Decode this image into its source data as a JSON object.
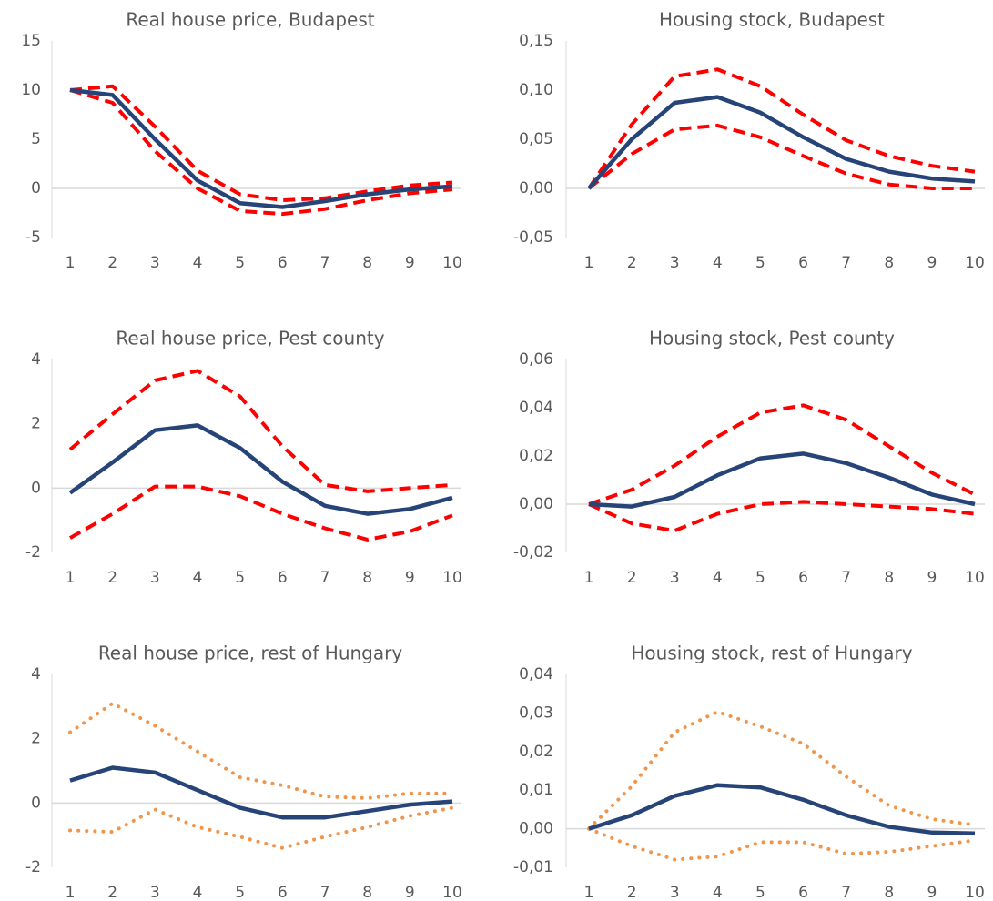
{
  "chart_data": [
    {
      "type": "line",
      "title": "Real house price, Budapest",
      "categories": [
        "1",
        "2",
        "3",
        "4",
        "5",
        "6",
        "7",
        "8",
        "9",
        "10"
      ],
      "ylim": [
        -5,
        15
      ],
      "yticks": [
        -5,
        0,
        5,
        10,
        15
      ],
      "series": [
        {
          "color": "#ff0000",
          "style": "dashed",
          "values": [
            10,
            10.4,
            6.3,
            1.8,
            -0.6,
            -1.2,
            -1.0,
            -0.3,
            0.3,
            0.6
          ]
        },
        {
          "color": "#ff0000",
          "style": "dashed",
          "values": [
            10,
            8.7,
            3.8,
            0,
            -2.3,
            -2.6,
            -2.1,
            -1.2,
            -0.5,
            -0.1
          ]
        },
        {
          "color": "#264478",
          "style": "solid",
          "values": [
            10,
            9.5,
            5,
            0.8,
            -1.5,
            -1.9,
            -1.3,
            -0.6,
            -0.1,
            0.2
          ]
        }
      ]
    },
    {
      "type": "line",
      "title": "Housing stock, Budapest",
      "categories": [
        "1",
        "2",
        "3",
        "4",
        "5",
        "6",
        "7",
        "8",
        "9",
        "10"
      ],
      "ylim": [
        -0.05,
        0.15
      ],
      "yticks": [
        {
          "value": -0.05,
          "label": "-0,05"
        },
        {
          "value": 0,
          "label": "0,00"
        },
        {
          "value": 0.05,
          "label": "0,05"
        },
        {
          "value": 0.1,
          "label": "0,10"
        },
        {
          "value": 0.15,
          "label": "0,15"
        }
      ],
      "series": [
        {
          "color": "#ff0000",
          "style": "dashed",
          "values": [
            0,
            0.065,
            0.114,
            0.121,
            0.104,
            0.075,
            0.049,
            0.033,
            0.023,
            0.017
          ]
        },
        {
          "color": "#ff0000",
          "style": "dashed",
          "values": [
            0,
            0.035,
            0.06,
            0.064,
            0.052,
            0.033,
            0.015,
            0.004,
            0.0,
            0.0
          ]
        },
        {
          "color": "#264478",
          "style": "solid",
          "values": [
            0,
            0.05,
            0.087,
            0.093,
            0.077,
            0.052,
            0.03,
            0.017,
            0.01,
            0.007
          ]
        }
      ]
    },
    {
      "type": "line",
      "title": "Real house price, Pest county",
      "categories": [
        "1",
        "2",
        "3",
        "4",
        "5",
        "6",
        "7",
        "8",
        "9",
        "10"
      ],
      "ylim": [
        -2,
        4
      ],
      "yticks": [
        -2,
        0,
        2,
        4
      ],
      "series": [
        {
          "color": "#ff0000",
          "style": "dashed",
          "values": [
            1.2,
            2.3,
            3.35,
            3.65,
            2.85,
            1.3,
            0.1,
            -0.1,
            0,
            0.1
          ]
        },
        {
          "color": "#ff0000",
          "style": "dashed",
          "values": [
            -1.55,
            -0.8,
            0.05,
            0.05,
            -0.25,
            -0.8,
            -1.25,
            -1.6,
            -1.35,
            -0.85
          ]
        },
        {
          "color": "#264478",
          "style": "solid",
          "values": [
            -0.15,
            0.8,
            1.8,
            1.95,
            1.25,
            0.2,
            -0.55,
            -0.8,
            -0.65,
            -0.3
          ]
        }
      ]
    },
    {
      "type": "line",
      "title": "Housing stock, Pest county",
      "categories": [
        "1",
        "2",
        "3",
        "4",
        "5",
        "6",
        "7",
        "8",
        "9",
        "10"
      ],
      "ylim": [
        -0.02,
        0.06
      ],
      "yticks": [
        {
          "value": -0.02,
          "label": "-0,02"
        },
        {
          "value": 0,
          "label": "0,00"
        },
        {
          "value": 0.02,
          "label": "0,02"
        },
        {
          "value": 0.04,
          "label": "0,04"
        },
        {
          "value": 0.06,
          "label": "0,06"
        }
      ],
      "series": [
        {
          "color": "#ff0000",
          "style": "dashed",
          "values": [
            0,
            0.006,
            0.016,
            0.028,
            0.038,
            0.041,
            0.035,
            0.024,
            0.013,
            0.004
          ]
        },
        {
          "color": "#ff0000",
          "style": "dashed",
          "values": [
            0,
            -0.008,
            -0.011,
            -0.004,
            0,
            0.001,
            0,
            -0.001,
            -0.002,
            -0.004
          ]
        },
        {
          "color": "#264478",
          "style": "solid",
          "values": [
            0,
            -0.001,
            0.003,
            0.012,
            0.019,
            0.021,
            0.017,
            0.011,
            0.004,
            0
          ]
        }
      ]
    },
    {
      "type": "line",
      "title": "Real house price, rest of Hungary",
      "categories": [
        "1",
        "2",
        "3",
        "4",
        "5",
        "6",
        "7",
        "8",
        "9",
        "10"
      ],
      "ylim": [
        -2,
        4
      ],
      "yticks": [
        -2,
        0,
        2,
        4
      ],
      "series": [
        {
          "color": "#f0954a",
          "style": "dotted",
          "values": [
            2.2,
            3.1,
            2.4,
            1.6,
            0.8,
            0.55,
            0.2,
            0.15,
            0.3,
            0.3
          ]
        },
        {
          "color": "#f0954a",
          "style": "dotted",
          "values": [
            -0.85,
            -0.9,
            -0.2,
            -0.75,
            -1.05,
            -1.4,
            -1.05,
            -0.75,
            -0.4,
            -0.15
          ]
        },
        {
          "color": "#264478",
          "style": "solid",
          "values": [
            0.7,
            1.1,
            0.95,
            0.4,
            -0.15,
            -0.45,
            -0.45,
            -0.25,
            -0.05,
            0.05
          ]
        }
      ]
    },
    {
      "type": "line",
      "title": "Housing stock, rest of Hungary",
      "categories": [
        "1",
        "2",
        "3",
        "4",
        "5",
        "6",
        "7",
        "8",
        "9",
        "10"
      ],
      "ylim": [
        -0.01,
        0.04
      ],
      "yticks": [
        {
          "value": -0.01,
          "label": "-0,01"
        },
        {
          "value": 0,
          "label": "0,00"
        },
        {
          "value": 0.01,
          "label": "0,01"
        },
        {
          "value": 0.02,
          "label": "0,02"
        },
        {
          "value": 0.03,
          "label": "0,03"
        },
        {
          "value": 0.04,
          "label": "0,04"
        }
      ],
      "series": [
        {
          "color": "#f0954a",
          "style": "dotted",
          "values": [
            0,
            0.011,
            0.025,
            0.0303,
            0.0265,
            0.022,
            0.0135,
            0.006,
            0.0025,
            0.001
          ]
        },
        {
          "color": "#f0954a",
          "style": "dotted",
          "values": [
            0,
            -0.0045,
            -0.008,
            -0.0072,
            -0.0035,
            -0.0035,
            -0.0065,
            -0.006,
            -0.0045,
            -0.003
          ]
        },
        {
          "color": "#264478",
          "style": "solid",
          "values": [
            0,
            0.0035,
            0.0085,
            0.0113,
            0.0107,
            0.0075,
            0.0035,
            0.0005,
            -0.001,
            -0.0012
          ]
        }
      ]
    }
  ]
}
